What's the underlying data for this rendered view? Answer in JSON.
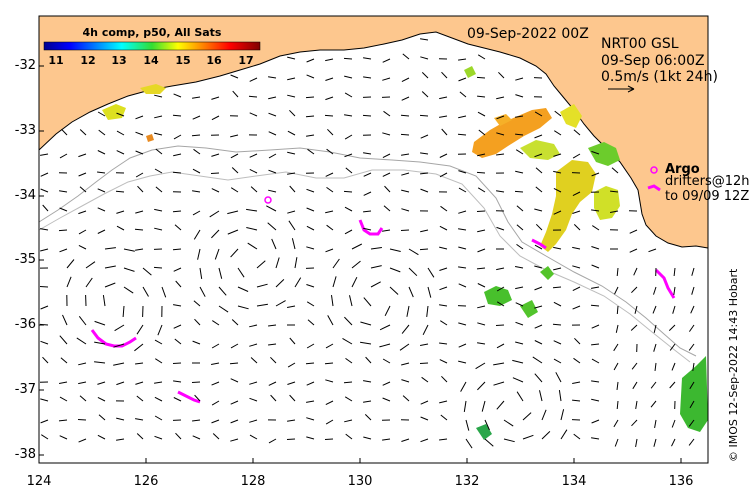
{
  "map": {
    "date_label": "09-Sep-2022 00Z",
    "product": {
      "line1": "NRT00 GSL",
      "line2": "09-Sep 06:00Z",
      "scale": "0.5m/s (1kt 24h)"
    },
    "argo": {
      "title": "Argo",
      "line1": "drifters@12h",
      "line2": "to 09/09 12Z"
    },
    "credit": "© IMOS 12-Sep-2022 14:43 Hobart",
    "colorbar": {
      "title": "4h comp, p50, All Sats",
      "ticks": [
        "11",
        "12",
        "13",
        "14",
        "15",
        "16",
        "17"
      ]
    },
    "lat_ticks": [
      "-32",
      "-33",
      "-34",
      "-35",
      "-36",
      "-37",
      "-38"
    ],
    "lon_ticks": [
      "124",
      "126",
      "128",
      "130",
      "132",
      "134",
      "136"
    ],
    "colors": {
      "land": "#fdc78e",
      "ocean": "#ffffff",
      "shelf_line": "#a6a6a6",
      "argo": "#ff00ff",
      "warm_sst": "#f4a020",
      "mid_sst": "#d8e81c",
      "cool_sst": "#2ec02a"
    }
  }
}
